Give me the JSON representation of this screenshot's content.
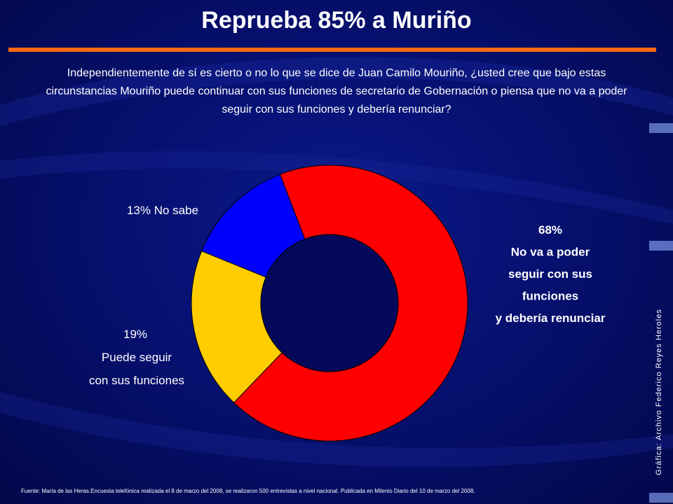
{
  "title": "Reprueba 85% a Muriño",
  "question": "Independientemente de sí es cierto o no lo que se dice de Juan Camilo Mouriño, ¿usted cree que bajo estas circunstancias Mouriño puede continuar con sus funciones de secretario de Gobernación o piensa que no va a poder seguir con sus funciones y debería renunciar?",
  "source": "Fuente: María de las Heras.Encuesta telefónica realizada el 8 de marzo del 2008, se realizaron 500 entrevistas a nivel nacional. Publicada en Milenio Diario del 10 de marzo del 2008.",
  "credit": "Gráfica: Archivo Federico Reyes Heroles",
  "colors": {
    "background": "#061070",
    "accent_rule": "#ff6a10"
  },
  "chart_data": {
    "type": "pie",
    "donut": true,
    "slices": [
      {
        "label_lines": [
          "68%",
          "No va a poder",
          "seguir con sus",
          "funciones",
          "y debería renunciar"
        ],
        "value": 68,
        "color": "#ff0000"
      },
      {
        "label_lines": [
          "19%",
          "Puede seguir",
          "con sus funciones"
        ],
        "value": 19,
        "color": "#ffcc00"
      },
      {
        "label_lines": [
          "13%  No sabe"
        ],
        "value": 13,
        "color": "#0000ff"
      }
    ]
  }
}
